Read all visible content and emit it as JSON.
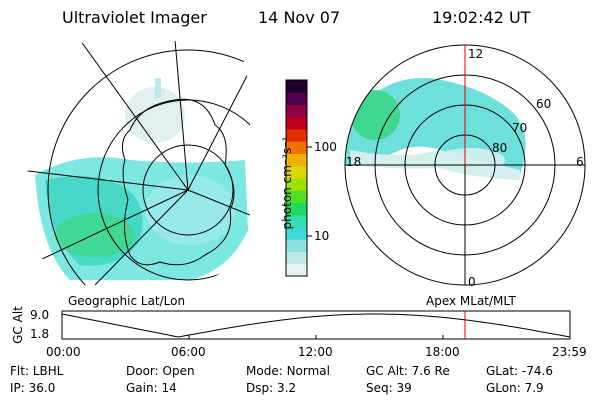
{
  "header": {
    "title": "Ultraviolet Imager",
    "date": "14 Nov 07",
    "time": "19:02:42 UT"
  },
  "left_panel": {
    "label": "Geographic Lat/Lon"
  },
  "right_panel": {
    "label": "Apex MLat/MLT",
    "mlt_labels": {
      "top": "12",
      "left": "18",
      "right": "6",
      "bottom": "0"
    },
    "lat_labels": [
      "60",
      "70",
      "80"
    ]
  },
  "colorbar": {
    "unit_label": "photon cm⁻²s⁻¹",
    "ticks": [
      "100",
      "10"
    ],
    "colors": [
      "#e8f4f4",
      "#bfe8ea",
      "#8edfe0",
      "#40d8d8",
      "#30e0b0",
      "#20d860",
      "#50e020",
      "#a0e000",
      "#d8d800",
      "#f0b000",
      "#f07000",
      "#e03000",
      "#c00020",
      "#900040",
      "#500050",
      "#200030"
    ]
  },
  "altitude_plot": {
    "axis_label": "GC Alt",
    "y_ticks": [
      "9.0",
      "1.8"
    ],
    "x_ticks": [
      "00:00",
      "06:00",
      "12:00",
      "18:00",
      "23:59"
    ],
    "marker_time_hours": 19.04
  },
  "info": {
    "row1": [
      {
        "label": "Flt:",
        "value": "LBHL"
      },
      {
        "label": "Door:",
        "value": "Open"
      },
      {
        "label": "Mode:",
        "value": "Normal"
      },
      {
        "label": "GC Alt:",
        "value": "7.6 Re"
      },
      {
        "label": "GLat:",
        "value": "-74.6"
      }
    ],
    "row2": [
      {
        "label": "IP:",
        "value": "36.0"
      },
      {
        "label": "Gain:",
        "value": "14"
      },
      {
        "label": "Dsp:",
        "value": "3.2"
      },
      {
        "label": "Seq:",
        "value": "39"
      },
      {
        "label": "GLon:",
        "value": "7.9"
      }
    ]
  }
}
